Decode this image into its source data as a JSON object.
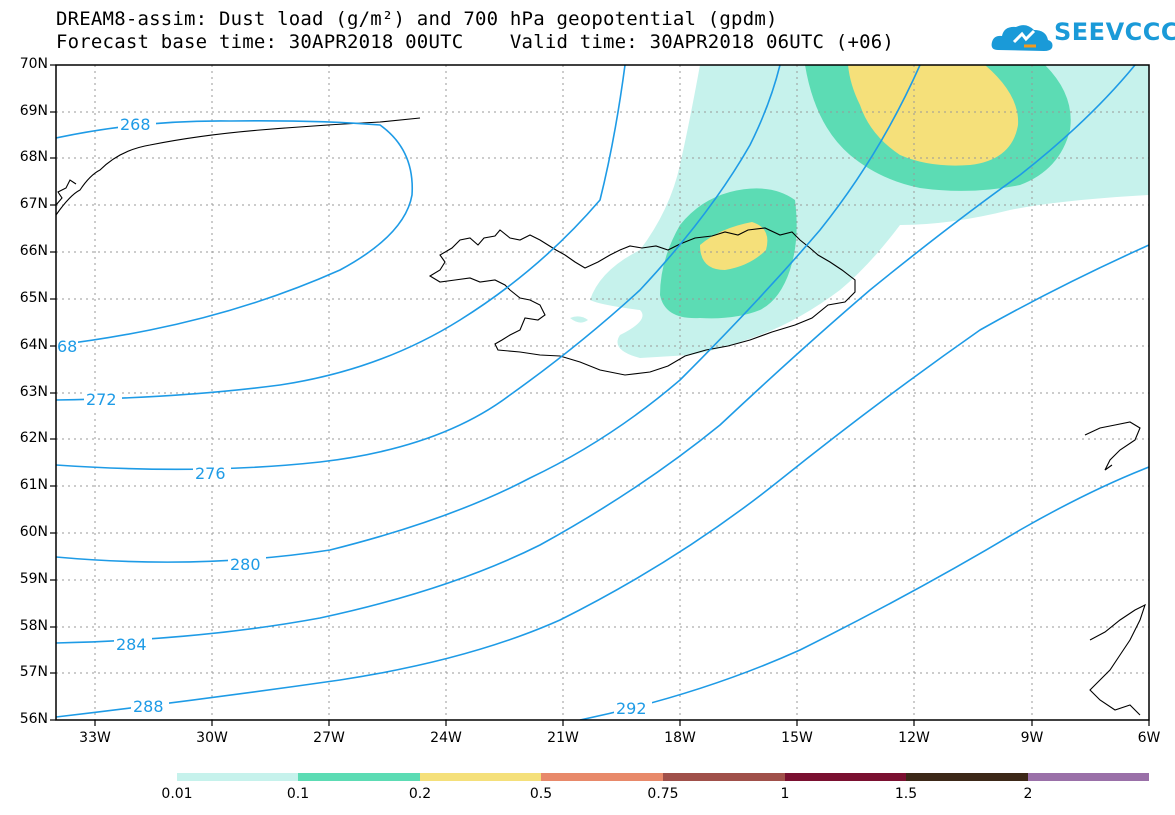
{
  "header": {
    "title_line1": "DREAM8-assim: Dust load (g/m²) and 700 hPa geopotential (gpdm)",
    "title_line2": "Forecast base time: 30APR2018 00UTC    Valid time: 30APR2018 06UTC (+06)"
  },
  "logo": {
    "text": "SEEVCCC",
    "icon": "cloud-logo-icon",
    "color": "#1a9ad8"
  },
  "map": {
    "lat_labels": [
      "70N",
      "69N",
      "68N",
      "67N",
      "66N",
      "65N",
      "64N",
      "63N",
      "62N",
      "61N",
      "60N",
      "59N",
      "58N",
      "57N",
      "56N"
    ],
    "lon_labels": [
      "33W",
      "30W",
      "27W",
      "24W",
      "21W",
      "18W",
      "15W",
      "12W",
      "9W",
      "6W"
    ],
    "contour_labels": [
      "268",
      "68",
      "272",
      "276",
      "280",
      "284",
      "288",
      "292"
    ],
    "contour_color": "#1e9be6",
    "fill_colors": {
      "c001": "#c6f2ec",
      "c01": "#5cdcb4",
      "c02": "#f5e07a"
    }
  },
  "colorbar": {
    "labels": [
      "0.01",
      "0.1",
      "0.2",
      "0.5",
      "0.75",
      "1",
      "1.5",
      "2"
    ],
    "colors": [
      "#c6f2ec",
      "#5cdcb4",
      "#f5e07a",
      "#e8896a",
      "#a0504a",
      "#7a1030",
      "#3c2818",
      "#9a70a8"
    ]
  }
}
